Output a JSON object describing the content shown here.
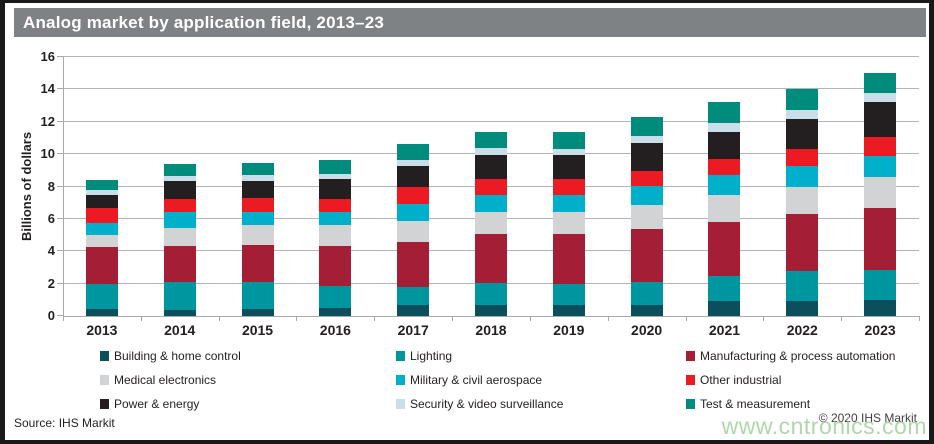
{
  "title": "Analog market by application field, 2013–23",
  "footer": {
    "source": "Source: IHS Markit",
    "copyright": "© 2020 IHS Markit",
    "watermark": "www.cntronics.com"
  },
  "chart_data": {
    "type": "bar",
    "stacked": true,
    "title": "Analog market by application field, 2013–23",
    "xlabel": "",
    "ylabel": "Billions of dollars",
    "ylim": [
      0,
      16
    ],
    "ytick_step": 2,
    "grid": true,
    "legend_position": "bottom",
    "categories": [
      "2013",
      "2014",
      "2015",
      "2016",
      "2017",
      "2018",
      "2019",
      "2020",
      "2021",
      "2022",
      "2023"
    ],
    "series": [
      {
        "name": "Building & home control",
        "color": "#0c4f5c",
        "values": [
          0.45,
          0.4,
          0.45,
          0.5,
          0.65,
          0.65,
          0.7,
          0.7,
          0.9,
          0.95,
          1.0
        ]
      },
      {
        "name": "Lighting",
        "color": "#0096a0",
        "values": [
          1.55,
          1.7,
          1.65,
          1.35,
          1.15,
          1.4,
          1.3,
          1.4,
          1.55,
          1.85,
          1.85
        ]
      },
      {
        "name": "Manufacturing & process automation",
        "color": "#a41e35",
        "values": [
          2.25,
          2.25,
          2.3,
          2.45,
          2.8,
          3.0,
          3.05,
          3.3,
          3.35,
          3.5,
          3.85
        ]
      },
      {
        "name": "Medical electronics",
        "color": "#d2d3d5",
        "values": [
          0.75,
          1.1,
          1.2,
          1.35,
          1.3,
          1.4,
          1.4,
          1.45,
          1.65,
          1.7,
          1.9
        ]
      },
      {
        "name": "Military & civil aerospace",
        "color": "#00b0cb",
        "values": [
          0.75,
          1.0,
          0.85,
          0.75,
          1.0,
          1.0,
          1.05,
          1.2,
          1.25,
          1.25,
          1.3
        ]
      },
      {
        "name": "Other industrial",
        "color": "#ec1b23",
        "values": [
          0.9,
          0.8,
          0.85,
          0.8,
          1.05,
          1.0,
          0.95,
          0.9,
          1.0,
          1.05,
          1.15
        ]
      },
      {
        "name": "Power & energy",
        "color": "#231f20",
        "values": [
          0.8,
          1.1,
          1.05,
          1.25,
          1.35,
          1.5,
          1.5,
          1.75,
          1.65,
          1.85,
          2.2
        ]
      },
      {
        "name": "Security & video surveillance",
        "color": "#c9dee8",
        "values": [
          0.35,
          0.3,
          0.35,
          0.3,
          0.35,
          0.4,
          0.4,
          0.45,
          0.55,
          0.6,
          0.55
        ]
      },
      {
        "name": "Test & measurement",
        "color": "#008c7c",
        "values": [
          0.6,
          0.75,
          0.75,
          0.9,
          1.0,
          1.05,
          1.05,
          1.15,
          1.3,
          1.3,
          1.2
        ]
      }
    ],
    "totals": [
      8.4,
      9.4,
      9.45,
      9.65,
      10.65,
      11.4,
      11.4,
      12.3,
      13.2,
      14.05,
      15.0
    ]
  }
}
